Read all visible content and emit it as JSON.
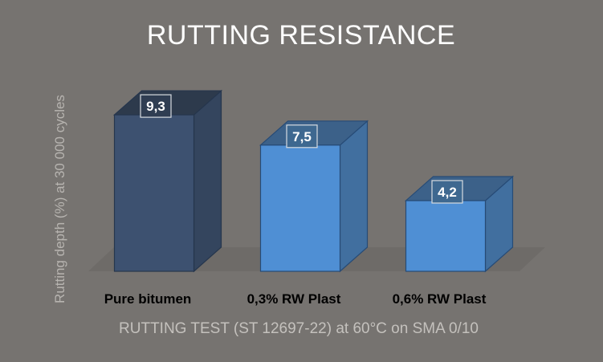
{
  "chart_data": {
    "type": "bar",
    "title": "RUTTING RESISTANCE",
    "xlabel": "RUTTING TEST (ST 12697-22) at 60°C on SMA 0/10",
    "ylabel": "Rutting depth (%) at 30 000 cycles",
    "categories": [
      "Pure bitumen",
      "0,3% RW Plast",
      "0,6% RW Plast"
    ],
    "values": [
      9.3,
      7.5,
      4.2
    ],
    "value_labels": [
      "9,3",
      "7,5",
      "4,2"
    ],
    "ylim": [
      0,
      10
    ],
    "grid": false,
    "legend": "none",
    "style": "3d-column",
    "colors": {
      "bar_dark": "#3d5170",
      "bar_light": "#4f8fd4",
      "floor": "#6e6b68",
      "background": "#767370"
    }
  }
}
